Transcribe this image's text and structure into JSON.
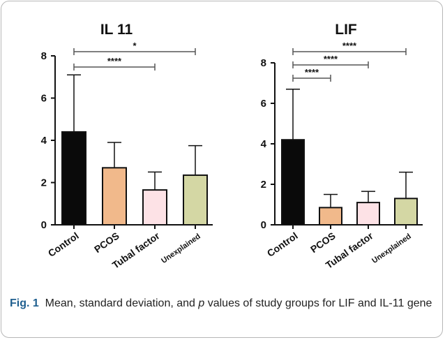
{
  "chart_data": [
    {
      "type": "bar",
      "title": "IL 11",
      "categories": [
        "Control",
        "PCOS",
        "Tubal factor",
        "Unexplained"
      ],
      "values": [
        4.4,
        2.7,
        1.65,
        2.35
      ],
      "error_upper": [
        7.1,
        3.9,
        2.5,
        3.75
      ],
      "colors": [
        "#0a0a0a",
        "#f1b98b",
        "#fde2e6",
        "#d4d7a4"
      ],
      "ylim": [
        0,
        8
      ],
      "yticks": [
        0,
        2,
        4,
        6,
        8
      ],
      "significance": [
        {
          "from": "Control",
          "to": "Tubal factor",
          "label": "****"
        },
        {
          "from": "Control",
          "to": "Unexplained",
          "label": "*"
        }
      ]
    },
    {
      "type": "bar",
      "title": "LIF",
      "categories": [
        "Control",
        "PCOS",
        "Tubal factor",
        "Unexplained"
      ],
      "values": [
        4.2,
        0.85,
        1.1,
        1.3
      ],
      "error_upper": [
        6.7,
        1.5,
        1.65,
        2.6
      ],
      "colors": [
        "#0a0a0a",
        "#f1b98b",
        "#fde2e6",
        "#d4d7a4"
      ],
      "ylim": [
        0,
        8
      ],
      "yticks": [
        0,
        2,
        4,
        6,
        8
      ],
      "significance": [
        {
          "from": "Control",
          "to": "PCOS",
          "label": "****"
        },
        {
          "from": "Control",
          "to": "Tubal factor",
          "label": "****"
        },
        {
          "from": "Control",
          "to": "Unexplained",
          "label": "****"
        }
      ]
    }
  ],
  "caption": {
    "fig_label": "Fig. 1",
    "text_before": "Mean, standard deviation, and ",
    "p_symbol": "p",
    "text_after": " values of study groups for LIF and IL-11 gene"
  }
}
